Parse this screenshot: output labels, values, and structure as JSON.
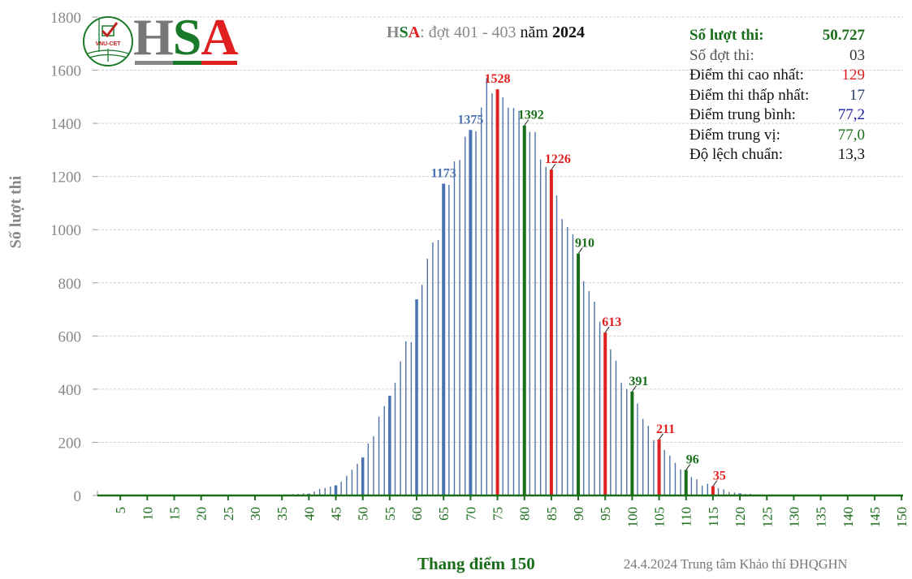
{
  "title": {
    "h": "H",
    "s": "S",
    "a": "A",
    "rest": ": đợt 401  - 403",
    "nam": "năm",
    "year": "2024"
  },
  "logo": {
    "text": "VNU-CET",
    "letters": [
      "H",
      "S",
      "A"
    ]
  },
  "stats": [
    {
      "label": "Số lượt thi:",
      "value": "50.727",
      "color": "#1a6e1a"
    },
    {
      "label": "Số đợt thi:",
      "value": "03",
      "color": "#333333"
    },
    {
      "label": "Điểm thi cao nhất:",
      "value": "129",
      "color": "#e02020"
    },
    {
      "label": "Điểm thi thấp nhất:",
      "value": "17",
      "color": "#2a3f6a"
    },
    {
      "label": "Điểm trung bình:",
      "value": "77,2",
      "color": "#1a1aa0"
    },
    {
      "label": "Điểm trung vị:",
      "value": "77,0",
      "color": "#1a6e1a"
    },
    {
      "label": "Độ lệch chuẩn:",
      "value": "13,3",
      "color": "#111111"
    }
  ],
  "footer": {
    "credit": "24.4.2024 Trung tâm Khảo thí ĐHQGHN"
  },
  "chart_data": {
    "type": "bar",
    "xlabel": "Thang điểm 150",
    "ylabel": "Số lượt thi",
    "xlim": [
      0,
      150
    ],
    "ylim": [
      0,
      1800
    ],
    "yticks": [
      0,
      200,
      400,
      600,
      800,
      1000,
      1200,
      1400,
      1600,
      1800
    ],
    "xticks": [
      5,
      10,
      15,
      20,
      25,
      30,
      35,
      40,
      45,
      50,
      55,
      60,
      65,
      70,
      75,
      80,
      85,
      90,
      95,
      100,
      105,
      110,
      115,
      120,
      125,
      130,
      135,
      140,
      145,
      150
    ],
    "grid": "horizontal",
    "x_start": 17,
    "values": [
      1,
      1,
      1,
      1,
      1,
      1,
      1,
      1,
      1,
      1,
      1,
      2,
      1,
      2,
      2,
      2,
      2,
      3,
      3,
      4,
      5,
      6,
      8,
      7,
      15,
      25,
      28,
      34,
      38,
      52,
      74,
      97,
      119,
      143,
      196,
      223,
      297,
      336,
      375,
      424,
      504,
      580,
      577,
      738,
      793,
      891,
      952,
      961,
      1173,
      1169,
      1257,
      1262,
      1350,
      1375,
      1370,
      1460,
      1570,
      1513,
      1528,
      1498,
      1459,
      1458,
      1447,
      1392,
      1368,
      1367,
      1264,
      1236,
      1226,
      1129,
      1040,
      1010,
      982,
      910,
      806,
      769,
      729,
      654,
      613,
      550,
      507,
      425,
      400,
      391,
      346,
      288,
      262,
      208,
      211,
      171,
      150,
      123,
      98,
      96,
      69,
      61,
      37,
      44,
      35,
      28,
      23,
      13,
      11,
      8,
      6,
      6,
      4,
      3,
      2,
      2,
      1,
      1,
      1
    ],
    "labeled": [
      {
        "x": 65,
        "value": 1173,
        "color": "#4a72b0"
      },
      {
        "x": 70,
        "value": 1375,
        "color": "#4a72b0"
      },
      {
        "x": 75,
        "value": 1528,
        "color": "#e02020"
      },
      {
        "x": 80,
        "value": 1392,
        "color": "#1a6e1a"
      },
      {
        "x": 85,
        "value": 1226,
        "color": "#e02020"
      },
      {
        "x": 90,
        "value": 910,
        "color": "#1a6e1a"
      },
      {
        "x": 95,
        "value": 613,
        "color": "#e02020"
      },
      {
        "x": 100,
        "value": 391,
        "color": "#1a6e1a"
      },
      {
        "x": 105,
        "value": 211,
        "color": "#e02020"
      },
      {
        "x": 110,
        "value": 96,
        "color": "#1a6e1a"
      },
      {
        "x": 115,
        "value": 35,
        "color": "#e02020"
      }
    ],
    "colors": {
      "bar": "#4f72a6",
      "highlight_blue": "#4a72b0",
      "axis": "#1a6e1a",
      "grid": "#d0d0d0"
    }
  }
}
